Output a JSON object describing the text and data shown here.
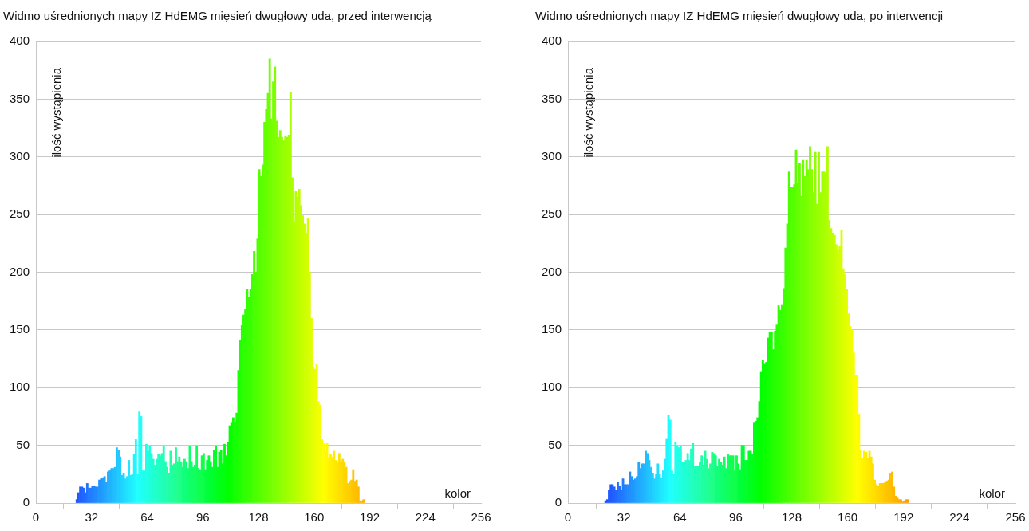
{
  "chart_data": [
    {
      "type": "histogram",
      "title": "Widmo uśrednionych mapy IZ HdEMG mięsień dwugłowy uda, przed interwencją",
      "xlabel": "kolor",
      "ylabel": "ilość wystąpienia",
      "bins": [
        23,
        24,
        25,
        26,
        27,
        28,
        29,
        30,
        31,
        32,
        33,
        34,
        35,
        36,
        37,
        38,
        39,
        40,
        41,
        42,
        43,
        44,
        45,
        46,
        47,
        48,
        49,
        50,
        51,
        52,
        53,
        54,
        55,
        56,
        57,
        58,
        59,
        60,
        61,
        62,
        63,
        64,
        65,
        66,
        67,
        68,
        69,
        70,
        71,
        72,
        73,
        74,
        75,
        76,
        77,
        78,
        79,
        80,
        81,
        82,
        83,
        84,
        85,
        86,
        87,
        88,
        89,
        90,
        91,
        92,
        93,
        94,
        95,
        96,
        97,
        98,
        99,
        100,
        101,
        102,
        103,
        104,
        105,
        106,
        107,
        108,
        109,
        110,
        111,
        112,
        113,
        114,
        115,
        116,
        117,
        118,
        119,
        120,
        121,
        122,
        123,
        124,
        125,
        126,
        127,
        128,
        129,
        130,
        131,
        132,
        133,
        134,
        135,
        136,
        137,
        138,
        139,
        140,
        141,
        142,
        143,
        144,
        145,
        146,
        147,
        148,
        149,
        150,
        151,
        152,
        153,
        154,
        155,
        156,
        157,
        158,
        159,
        160,
        161,
        162,
        163,
        164,
        165,
        166,
        167,
        168,
        169,
        170,
        171,
        172,
        173,
        174,
        175,
        176,
        177,
        178,
        179,
        180,
        181,
        182,
        183,
        184,
        185,
        186,
        187,
        188,
        189
      ],
      "values": [
        3,
        9,
        14,
        14,
        13,
        9,
        17,
        13,
        13,
        15,
        15,
        14,
        14,
        20,
        21,
        22,
        23,
        18,
        27,
        28,
        30,
        30,
        31,
        48,
        46,
        40,
        24,
        26,
        21,
        23,
        37,
        24,
        25,
        42,
        55,
        25,
        79,
        75,
        28,
        28,
        51,
        45,
        49,
        43,
        38,
        33,
        38,
        42,
        41,
        43,
        49,
        36,
        31,
        26,
        45,
        33,
        34,
        48,
        36,
        40,
        35,
        31,
        38,
        36,
        30,
        49,
        36,
        31,
        33,
        49,
        30,
        29,
        41,
        43,
        29,
        37,
        41,
        36,
        31,
        46,
        49,
        31,
        44,
        46,
        34,
        51,
        41,
        53,
        67,
        70,
        74,
        70,
        78,
        115,
        141,
        154,
        163,
        168,
        185,
        178,
        185,
        198,
        218,
        200,
        229,
        289,
        283,
        293,
        330,
        341,
        355,
        385,
        333,
        365,
        378,
        331,
        317,
        323,
        317,
        314,
        318,
        317,
        319,
        356,
        282,
        244,
        270,
        265,
        272,
        258,
        249,
        242,
        234,
        247,
        200,
        160,
        118,
        116,
        120,
        88,
        85,
        55,
        52,
        45,
        52,
        39,
        42,
        40,
        45,
        37,
        36,
        43,
        35,
        38,
        35,
        31,
        17,
        19,
        20,
        29,
        19,
        20,
        14,
        2,
        2,
        3
      ],
      "colors": [
        "#2055ff",
        "#205aff",
        "#205fff",
        "#2063ff",
        "#2068ff",
        "#206dff",
        "#2072ff",
        "#2077ff",
        "#207cff",
        "#2081ff",
        "#2085ff",
        "#208aff",
        "#208fff",
        "#2094ff",
        "#2099ff",
        "#209eff",
        "#20a3ff",
        "#20a7ff",
        "#20acff",
        "#20b1ff",
        "#20b6ff",
        "#20bbff",
        "#20c0ff",
        "#20c5ff",
        "#20c9ff",
        "#20ceff",
        "#20d3ff",
        "#20d8ff",
        "#20ddff",
        "#20e2ff",
        "#20e7ff",
        "#20ebff",
        "#20f0ff",
        "#20f5ff",
        "#20faff",
        "#20ffff",
        "#20fffa",
        "#20fff5",
        "#20fff0",
        "#20ffeb",
        "#20ffe7",
        "#20ffe2",
        "#20ffdd",
        "#20ffd8",
        "#20ffd3",
        "#20ffce",
        "#20ffc9",
        "#20ffc4",
        "#20ffbf",
        "#20ffba",
        "#20ffb6",
        "#20ffb1",
        "#20ffac",
        "#20ffa7",
        "#20ffa2",
        "#20ff9d",
        "#20ff98",
        "#20ff93",
        "#20ff8e",
        "#20ff89",
        "#20ff85",
        "#10ff80",
        "#10ff7b",
        "#10ff76",
        "#10ff71",
        "#10ff6c",
        "#10ff67",
        "#10ff62",
        "#10ff5d",
        "#10ff58",
        "#10ff54",
        "#10ff4f",
        "#10ff4a",
        "#10ff45",
        "#00ff40",
        "#00ff3b",
        "#00ff36",
        "#00ff31",
        "#00ff2c",
        "#00ff27",
        "#00ff23",
        "#00ff1e",
        "#00ff19",
        "#00ff14",
        "#00ff0f",
        "#00ff0a",
        "#00ff05",
        "#00ff00",
        "#05ff00",
        "#09ff00",
        "#0eff00",
        "#13ff00",
        "#17ff00",
        "#1cff00",
        "#20ff00",
        "#25ff00",
        "#2aff00",
        "#2eff00",
        "#33ff00",
        "#38ff00",
        "#3cff00",
        "#41ff00",
        "#46ff00",
        "#4aff00",
        "#4fff00",
        "#54ff00",
        "#58ff00",
        "#5dff00",
        "#61ff00",
        "#66ff00",
        "#6bff00",
        "#6fff00",
        "#74ff00",
        "#79ff00",
        "#7dff00",
        "#82ff00",
        "#87ff00",
        "#8bff00",
        "#90ff00",
        "#94ff00",
        "#99ff00",
        "#9eff00",
        "#a2ff00",
        "#a7ff00",
        "#acff00",
        "#b0ff00",
        "#b5ff00",
        "#baff00",
        "#beff00",
        "#c3ff00",
        "#c7ff00",
        "#ccff00",
        "#d1ff00",
        "#d5ff00",
        "#daff00",
        "#dfff00",
        "#e3ff00",
        "#e8ff00",
        "#edff00",
        "#f1ff00",
        "#f6ff00",
        "#faff00",
        "#ffff00",
        "#fffc00",
        "#fff800",
        "#fff500",
        "#fff100",
        "#ffee00",
        "#ffeb00",
        "#ffe700",
        "#ffe400",
        "#ffe000",
        "#ffdd00",
        "#ffda00",
        "#ffd600",
        "#ffd300",
        "#ffcf00",
        "#ffcc00",
        "#ffc900",
        "#ffc500",
        "#ffc200",
        "#ffbe00",
        "#ffbb00",
        "#ffb800",
        "#ffb400",
        "#ffb100"
      ],
      "xlim": [
        0,
        256
      ],
      "xticks": [
        0,
        32,
        64,
        96,
        128,
        160,
        192,
        224,
        256
      ],
      "ylim": [
        0,
        400
      ],
      "yticks": [
        0,
        50,
        100,
        150,
        200,
        250,
        300,
        350,
        400
      ],
      "grid": "y"
    },
    {
      "type": "histogram",
      "title": "Widmo uśrednionych mapy IZ HdEMG mięsień dwugłowy uda, po interwencji",
      "xlabel": "kolor",
      "ylabel": "ilość wystąpienia",
      "bins": [
        21,
        22,
        23,
        24,
        25,
        26,
        27,
        28,
        29,
        30,
        31,
        32,
        33,
        34,
        35,
        36,
        37,
        38,
        39,
        40,
        41,
        42,
        43,
        44,
        45,
        46,
        47,
        48,
        49,
        50,
        51,
        52,
        53,
        54,
        55,
        56,
        57,
        58,
        59,
        60,
        61,
        62,
        63,
        64,
        65,
        66,
        67,
        68,
        69,
        70,
        71,
        72,
        73,
        74,
        75,
        76,
        77,
        78,
        79,
        80,
        81,
        82,
        83,
        84,
        85,
        86,
        87,
        88,
        89,
        90,
        91,
        92,
        93,
        94,
        95,
        96,
        97,
        98,
        99,
        100,
        101,
        102,
        103,
        104,
        105,
        106,
        107,
        108,
        109,
        110,
        111,
        112,
        113,
        114,
        115,
        116,
        117,
        118,
        119,
        120,
        121,
        122,
        123,
        124,
        125,
        126,
        127,
        128,
        129,
        130,
        131,
        132,
        133,
        134,
        135,
        136,
        137,
        138,
        139,
        140,
        141,
        142,
        143,
        144,
        145,
        146,
        147,
        148,
        149,
        150,
        151,
        152,
        153,
        154,
        155,
        156,
        157,
        158,
        159,
        160,
        161,
        162,
        163,
        164,
        165,
        166,
        167,
        168,
        169,
        170,
        171,
        172,
        173,
        174,
        175,
        176,
        177,
        178,
        179,
        180,
        181,
        182,
        183,
        184,
        185,
        186,
        187,
        188,
        189,
        190,
        191,
        192,
        193,
        194,
        195
      ],
      "values": [
        2,
        3,
        11,
        16,
        16,
        14,
        11,
        18,
        15,
        11,
        21,
        16,
        16,
        16,
        27,
        23,
        20,
        21,
        23,
        35,
        30,
        34,
        34,
        45,
        43,
        37,
        31,
        26,
        21,
        25,
        34,
        25,
        22,
        28,
        38,
        56,
        76,
        72,
        28,
        25,
        53,
        49,
        48,
        49,
        35,
        35,
        37,
        43,
        37,
        47,
        52,
        32,
        32,
        32,
        35,
        41,
        33,
        45,
        38,
        30,
        34,
        44,
        43,
        41,
        32,
        38,
        35,
        33,
        40,
        30,
        42,
        41,
        41,
        41,
        28,
        41,
        34,
        29,
        50,
        50,
        37,
        37,
        45,
        45,
        42,
        70,
        71,
        74,
        88,
        114,
        124,
        121,
        122,
        143,
        148,
        148,
        133,
        149,
        155,
        171,
        167,
        172,
        186,
        221,
        242,
        287,
        274,
        274,
        276,
        306,
        277,
        294,
        266,
        297,
        283,
        297,
        289,
        309,
        289,
        269,
        304,
        259,
        304,
        269,
        287,
        287,
        286,
        309,
        245,
        238,
        234,
        232,
        224,
        219,
        223,
        236,
        203,
        198,
        185,
        164,
        153,
        150,
        130,
        111,
        111,
        77,
        46,
        39,
        45,
        44,
        39,
        45,
        40,
        34,
        20,
        16,
        15,
        17,
        17,
        17,
        18,
        19,
        20,
        26,
        27,
        14,
        6,
        5,
        3,
        3,
        1,
        2,
        3,
        3
      ],
      "colors": [
        "#204bff",
        "#2050ff",
        "#2055ff",
        "#205aff",
        "#205fff",
        "#2063ff",
        "#2068ff",
        "#206dff",
        "#2072ff",
        "#2077ff",
        "#207cff",
        "#2081ff",
        "#2085ff",
        "#208aff",
        "#208fff",
        "#2094ff",
        "#2099ff",
        "#209eff",
        "#20a3ff",
        "#20a7ff",
        "#20acff",
        "#20b1ff",
        "#20b6ff",
        "#20bbff",
        "#20c0ff",
        "#20c5ff",
        "#20c9ff",
        "#20ceff",
        "#20d3ff",
        "#20d8ff",
        "#20ddff",
        "#20e2ff",
        "#20e7ff",
        "#20ebff",
        "#20f0ff",
        "#20f5ff",
        "#20faff",
        "#20ffff",
        "#20fffa",
        "#20fff5",
        "#20fff0",
        "#20ffeb",
        "#20ffe7",
        "#20ffe2",
        "#20ffdd",
        "#20ffd8",
        "#20ffd3",
        "#20ffce",
        "#20ffc9",
        "#20ffc4",
        "#20ffbf",
        "#20ffba",
        "#20ffb6",
        "#20ffb1",
        "#20ffac",
        "#20ffa7",
        "#20ffa2",
        "#20ff9d",
        "#20ff98",
        "#20ff93",
        "#20ff8e",
        "#20ff89",
        "#20ff85",
        "#10ff80",
        "#10ff7b",
        "#10ff76",
        "#10ff71",
        "#10ff6c",
        "#10ff67",
        "#10ff62",
        "#10ff5d",
        "#10ff58",
        "#10ff54",
        "#10ff4f",
        "#10ff4a",
        "#10ff45",
        "#00ff40",
        "#00ff3b",
        "#00ff36",
        "#00ff31",
        "#00ff2c",
        "#00ff27",
        "#00ff23",
        "#00ff1e",
        "#00ff19",
        "#00ff14",
        "#00ff0f",
        "#00ff0a",
        "#00ff05",
        "#00ff00",
        "#05ff00",
        "#09ff00",
        "#0eff00",
        "#13ff00",
        "#17ff00",
        "#1cff00",
        "#20ff00",
        "#25ff00",
        "#2aff00",
        "#2eff00",
        "#33ff00",
        "#38ff00",
        "#3cff00",
        "#41ff00",
        "#46ff00",
        "#4aff00",
        "#4fff00",
        "#54ff00",
        "#58ff00",
        "#5dff00",
        "#61ff00",
        "#66ff00",
        "#6bff00",
        "#6fff00",
        "#74ff00",
        "#79ff00",
        "#7dff00",
        "#82ff00",
        "#87ff00",
        "#8bff00",
        "#90ff00",
        "#94ff00",
        "#99ff00",
        "#9eff00",
        "#a2ff00",
        "#a7ff00",
        "#acff00",
        "#b0ff00",
        "#b5ff00",
        "#baff00",
        "#beff00",
        "#c3ff00",
        "#c7ff00",
        "#ccff00",
        "#d1ff00",
        "#d5ff00",
        "#daff00",
        "#dfff00",
        "#e3ff00",
        "#e8ff00",
        "#edff00",
        "#f1ff00",
        "#f6ff00",
        "#faff00",
        "#ffff00",
        "#fffc00",
        "#fff800",
        "#fff500",
        "#fff100",
        "#ffee00",
        "#ffeb00",
        "#ffe700",
        "#ffe400",
        "#ffe000",
        "#ffdd00",
        "#ffda00",
        "#ffd600",
        "#ffd300",
        "#ffcf00",
        "#ffcc00",
        "#ffc900",
        "#ffc500",
        "#ffc200",
        "#ffbe00",
        "#ffbb00",
        "#ffb800",
        "#ffb400",
        "#ffb100",
        "#ffae00",
        "#ffaa00",
        "#ffa700",
        "#ffa400",
        "#ffa000",
        "#ff9d00"
      ],
      "xlim": [
        0,
        256
      ],
      "xticks": [
        0,
        32,
        64,
        96,
        128,
        160,
        192,
        224,
        256
      ],
      "ylim": [
        0,
        400
      ],
      "yticks": [
        0,
        50,
        100,
        150,
        200,
        250,
        300,
        350,
        400
      ],
      "grid": "y"
    }
  ]
}
